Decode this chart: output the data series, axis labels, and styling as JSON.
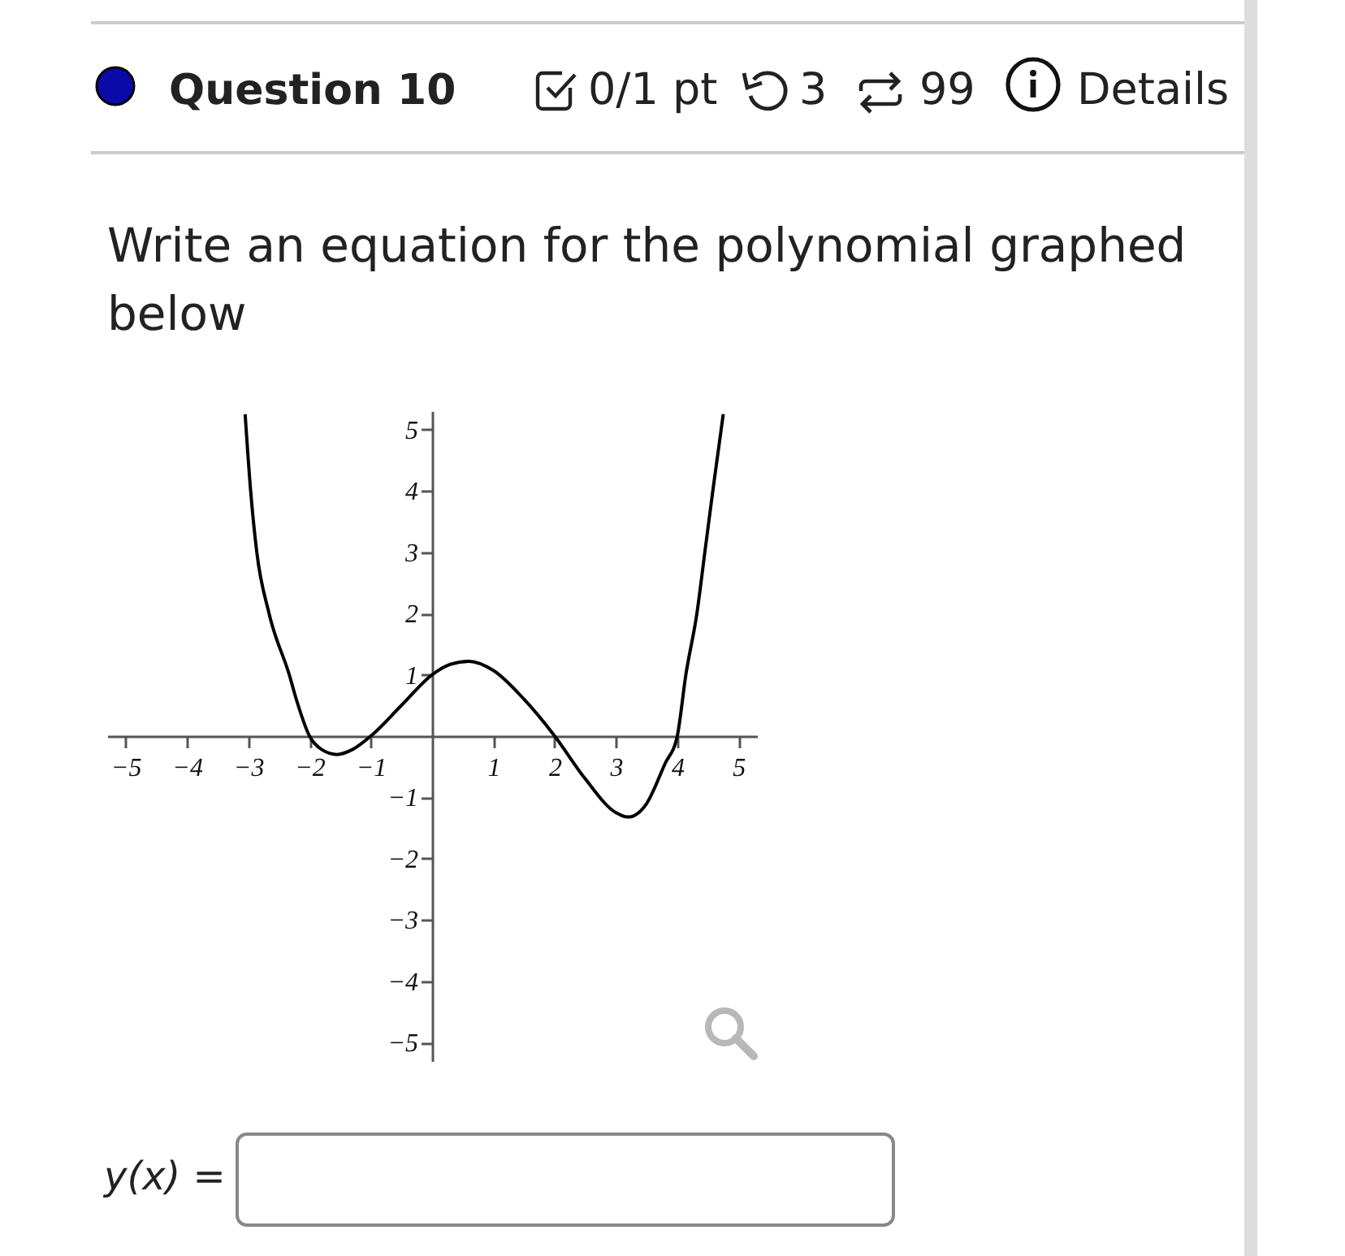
{
  "chart_data": {
    "type": "line",
    "title": "Write an equation for the polynomial graphed below",
    "annotations": [
      "Question 10",
      "0/1 pt",
      "3",
      "99",
      "Details",
      "y(x) ="
    ],
    "x": [
      -3.05,
      -2.96,
      -2.86,
      -2.66,
      -2.33,
      -2.2,
      -2,
      -1.8,
      -1.55,
      -1.3,
      -1,
      -0.5,
      0,
      0.3,
      0.6,
      1,
      1.5,
      2,
      2.5,
      3,
      3.2,
      3.5,
      3.8,
      4,
      4.14,
      4.32,
      4.45,
      4.58,
      4.75
    ],
    "series": [
      {
        "color": "#000000",
        "values": [
          5.25,
          4,
          3,
          2,
          1,
          0.55,
          0,
          -0.22,
          -0.3,
          -0.22,
          0,
          0.5,
          1,
          1.17,
          1.22,
          1.07,
          0.6,
          0,
          -0.7,
          -1.25,
          -1.32,
          -1.1,
          -0.45,
          0,
          1,
          2,
          3,
          4,
          5.25
        ]
      }
    ],
    "xlim": [
      -5.3,
      5.3
    ],
    "ylim": [
      -5.3,
      5.3
    ],
    "xticks": [
      -5,
      -4,
      -3,
      -2,
      -1,
      1,
      2,
      3,
      4,
      5
    ],
    "yticks": [
      -5,
      -4,
      -3,
      -2,
      -1,
      1,
      2,
      3,
      4,
      5
    ],
    "grid": false,
    "marker": "none",
    "line_style": "solid"
  }
}
